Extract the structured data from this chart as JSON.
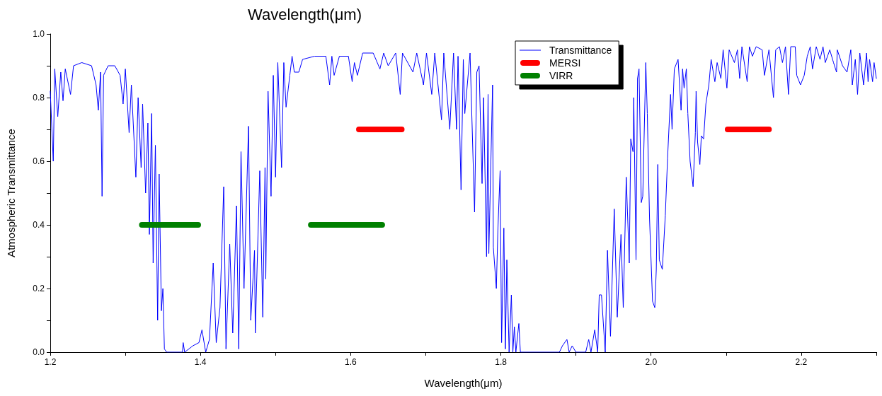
{
  "chart_data": {
    "type": "line",
    "title": "Wavelength(μm)",
    "xlabel": "Wavelength(μm)",
    "ylabel": "Atmospheric Transmittance",
    "xlim": [
      1.2,
      2.3
    ],
    "xticks": [
      {
        "value": 1.2,
        "label": "1.2"
      },
      {
        "value": 1.3,
        "label": null
      },
      {
        "value": 1.4,
        "label": "1.4"
      },
      {
        "value": 1.5,
        "label": null
      },
      {
        "value": 1.6,
        "label": "1.6"
      },
      {
        "value": 1.7,
        "label": null
      },
      {
        "value": 1.8,
        "label": "1.8"
      },
      {
        "value": 1.9,
        "label": null
      },
      {
        "value": 2.0,
        "label": "2.0"
      },
      {
        "value": 2.1,
        "label": null
      },
      {
        "value": 2.2,
        "label": "2.2"
      },
      {
        "value": 2.3,
        "label": null
      }
    ],
    "ylim": [
      0,
      1.0
    ],
    "yticks": [
      {
        "value": 0,
        "label": "0.0"
      },
      {
        "value": 0.1,
        "label": null
      },
      {
        "value": 0.2,
        "label": "0.2"
      },
      {
        "value": 0.3,
        "label": null
      },
      {
        "value": 0.4,
        "label": "0.4"
      },
      {
        "value": 0.5,
        "label": null
      },
      {
        "value": 0.6,
        "label": "0.6"
      },
      {
        "value": 0.7,
        "label": null
      },
      {
        "value": 0.8,
        "label": "0.8"
      },
      {
        "value": 0.9,
        "label": null
      },
      {
        "value": 1.0,
        "label": "1.0"
      }
    ],
    "grid": false,
    "legend": "top",
    "marker": "none",
    "line_style": "solid",
    "series": [
      {
        "name": "Transmittance",
        "color": "#0000ff",
        "x": [
          1.2,
          1.204,
          1.206,
          1.21,
          1.214,
          1.217,
          1.22,
          1.227,
          1.231,
          1.242,
          1.255,
          1.261,
          1.264,
          1.267,
          1.269,
          1.271,
          1.277,
          1.286,
          1.293,
          1.297,
          1.3,
          1.305,
          1.308,
          1.314,
          1.317,
          1.321,
          1.323,
          1.327,
          1.33,
          1.332,
          1.335,
          1.337,
          1.34,
          1.343,
          1.345,
          1.348,
          1.35,
          1.352,
          1.355,
          1.376,
          1.377,
          1.379,
          1.39,
          1.398,
          1.402,
          1.407,
          1.412,
          1.417,
          1.421,
          1.426,
          1.431,
          1.434,
          1.439,
          1.443,
          1.448,
          1.451,
          1.454,
          1.458,
          1.464,
          1.467,
          1.472,
          1.473,
          1.479,
          1.483,
          1.486,
          1.487,
          1.49,
          1.494,
          1.497,
          1.5,
          1.503,
          1.508,
          1.511,
          1.514,
          1.519,
          1.522,
          1.525,
          1.531,
          1.536,
          1.552,
          1.567,
          1.572,
          1.575,
          1.578,
          1.585,
          1.597,
          1.602,
          1.605,
          1.609,
          1.616,
          1.63,
          1.639,
          1.644,
          1.65,
          1.66,
          1.666,
          1.669,
          1.683,
          1.688,
          1.697,
          1.701,
          1.708,
          1.712,
          1.721,
          1.724,
          1.732,
          1.737,
          1.741,
          1.743,
          1.747,
          1.75,
          1.752,
          1.759,
          1.765,
          1.768,
          1.771,
          1.775,
          1.777,
          1.781,
          1.783,
          1.784,
          1.789,
          1.79,
          1.794,
          1.796,
          1.799,
          1.801,
          1.804,
          1.806,
          1.808,
          1.811,
          1.814,
          1.816,
          1.818,
          1.82,
          1.824,
          1.826,
          1.84,
          1.878,
          1.882,
          1.888,
          1.891,
          1.895,
          1.9,
          1.913,
          1.917,
          1.92,
          1.925,
          1.929,
          1.931,
          1.934,
          1.939,
          1.942,
          1.946,
          1.951,
          1.955,
          1.96,
          1.963,
          1.967,
          1.971,
          1.973,
          1.976,
          1.977,
          1.98,
          1.982,
          1.984,
          1.987,
          1.989,
          1.993,
          1.995,
          1.998,
          2.002,
          2.005,
          2.007,
          2.009,
          2.011,
          2.015,
          2.019,
          2.022,
          2.026,
          2.028,
          2.031,
          2.036,
          2.04,
          2.042,
          2.044,
          2.047,
          2.049,
          2.052,
          2.056,
          2.059,
          2.06,
          2.062,
          2.065,
          2.067,
          2.07,
          2.073,
          2.077,
          2.08,
          2.085,
          2.088,
          2.093,
          2.096,
          2.101,
          2.104,
          2.111,
          2.115,
          2.118,
          2.121,
          2.128,
          2.131,
          2.135,
          2.14,
          2.148,
          2.151,
          2.157,
          2.163,
          2.166,
          2.171,
          2.175,
          2.179,
          2.183,
          2.186,
          2.192,
          2.194,
          2.199,
          2.204,
          2.208,
          2.212,
          2.215,
          2.22,
          2.225,
          2.229,
          2.232,
          2.238,
          2.243,
          2.247,
          2.248,
          2.255,
          2.261,
          2.266,
          2.268,
          2.272,
          2.275,
          2.278,
          2.283,
          2.287,
          2.289,
          2.291,
          2.295,
          2.297,
          2.3
        ],
        "values": [
          0.82,
          0.6,
          0.89,
          0.74,
          0.88,
          0.79,
          0.89,
          0.81,
          0.9,
          0.91,
          0.9,
          0.84,
          0.76,
          0.88,
          0.49,
          0.87,
          0.9,
          0.9,
          0.87,
          0.78,
          0.89,
          0.69,
          0.84,
          0.55,
          0.8,
          0.58,
          0.78,
          0.5,
          0.72,
          0.37,
          0.75,
          0.28,
          0.65,
          0.1,
          0.56,
          0.13,
          0.2,
          0.01,
          0,
          0,
          0.03,
          0,
          0.02,
          0.03,
          0.07,
          0,
          0.04,
          0.28,
          0.03,
          0.14,
          0.52,
          0.01,
          0.34,
          0.06,
          0.46,
          0.01,
          0.63,
          0.2,
          0.71,
          0.1,
          0.32,
          0.06,
          0.57,
          0.11,
          0.58,
          0.23,
          0.82,
          0.49,
          0.87,
          0.55,
          0.91,
          0.58,
          0.91,
          0.77,
          0.87,
          0.93,
          0.88,
          0.88,
          0.92,
          0.93,
          0.93,
          0.84,
          0.93,
          0.87,
          0.93,
          0.93,
          0.85,
          0.91,
          0.87,
          0.94,
          0.94,
          0.89,
          0.94,
          0.9,
          0.94,
          0.81,
          0.94,
          0.88,
          0.94,
          0.84,
          0.94,
          0.81,
          0.94,
          0.73,
          0.94,
          0.7,
          0.94,
          0.7,
          0.93,
          0.51,
          0.92,
          0.75,
          0.94,
          0.44,
          0.88,
          0.9,
          0.53,
          0.8,
          0.3,
          0.81,
          0.31,
          0.84,
          0.33,
          0.2,
          0.38,
          0.57,
          0.03,
          0.39,
          0.01,
          0.29,
          0,
          0.18,
          0,
          0.08,
          0,
          0.09,
          0,
          0,
          0,
          0.02,
          0.04,
          0,
          0.02,
          0,
          0,
          0.04,
          0,
          0.07,
          0,
          0.18,
          0.18,
          0,
          0.32,
          0.05,
          0.45,
          0.11,
          0.37,
          0.14,
          0.55,
          0.28,
          0.67,
          0.63,
          0.8,
          0.29,
          0.86,
          0.89,
          0.47,
          0.49,
          0.91,
          0.75,
          0.42,
          0.16,
          0.14,
          0.26,
          0.59,
          0.29,
          0.26,
          0.43,
          0.61,
          0.81,
          0.7,
          0.89,
          0.92,
          0.76,
          0.89,
          0.83,
          0.89,
          0.75,
          0.6,
          0.52,
          0.69,
          0.82,
          0.66,
          0.59,
          0.68,
          0.67,
          0.78,
          0.84,
          0.92,
          0.85,
          0.91,
          0.86,
          0.95,
          0.83,
          0.95,
          0.91,
          0.95,
          0.86,
          0.96,
          0.85,
          0.96,
          0.93,
          0.96,
          0.95,
          0.87,
          0.95,
          0.8,
          0.95,
          0.96,
          0.91,
          0.96,
          0.81,
          0.96,
          0.96,
          0.87,
          0.84,
          0.87,
          0.93,
          0.96,
          0.89,
          0.96,
          0.92,
          0.96,
          0.91,
          0.95,
          0.91,
          0.88,
          0.95,
          0.9,
          0.88,
          0.95,
          0.84,
          0.92,
          0.81,
          0.94,
          0.84,
          0.94,
          0.85,
          0.92,
          0.85,
          0.91,
          0.86
        ]
      },
      {
        "name": "MERSI",
        "color": "#ff0000",
        "x": [
          1.611,
          1.668,
          null,
          2.102,
          2.157
        ],
        "values": [
          0.7,
          0.7,
          null,
          0.7,
          0.7
        ]
      },
      {
        "name": "VIRR",
        "color": "#008000",
        "x": [
          1.322,
          1.397,
          null,
          1.547,
          1.642
        ],
        "values": [
          0.4,
          0.4,
          null,
          0.4,
          0.4
        ]
      }
    ]
  }
}
